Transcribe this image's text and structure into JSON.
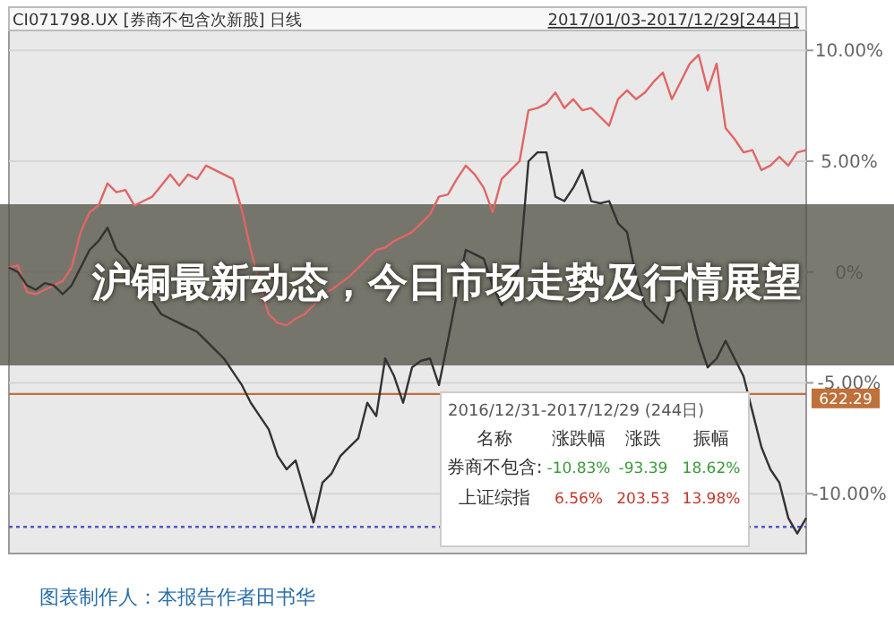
{
  "chart_data": {
    "type": "line",
    "title": "沪铜最新动态，今日市场走势及行情展望",
    "categories": [
      null,
      null,
      null,
      null,
      null,
      null,
      null,
      null,
      null,
      null,
      null,
      null,
      null,
      null,
      null,
      null,
      null,
      null,
      null,
      null,
      null,
      null,
      null,
      null,
      null,
      null,
      null,
      null,
      null,
      null,
      null,
      null,
      null,
      null,
      null,
      null,
      null,
      null,
      null,
      null,
      null,
      null,
      null,
      null,
      null,
      null,
      null,
      null,
      null,
      null,
      null,
      null,
      null,
      null,
      null,
      null,
      null,
      null,
      null,
      null,
      null,
      null,
      null,
      null,
      null,
      null,
      null,
      null,
      null,
      null,
      null,
      null,
      null,
      null,
      null,
      null,
      null,
      null,
      null,
      null,
      null,
      null,
      null,
      null,
      null,
      null,
      null,
      null,
      null,
      null
    ],
    "series": [
      {
        "color": "#e06666",
        "values": [
          0.2,
          0.3,
          -0.9,
          -1.0,
          -0.8,
          -0.6,
          -0.4,
          0.2,
          1.8,
          2.7,
          3.0,
          4.0,
          3.6,
          3.7,
          3.0,
          3.2,
          3.4,
          3.9,
          4.4,
          3.9,
          4.4,
          4.2,
          4.8,
          4.6,
          4.4,
          4.2,
          2.8,
          1.0,
          -0.6,
          -1.9,
          -2.3,
          -2.4,
          -2.1,
          -1.9,
          -1.5,
          -1.0,
          -0.8,
          -0.5,
          -0.2,
          0.2,
          0.6,
          1.0,
          1.1,
          1.4,
          1.6,
          1.8,
          2.2,
          2.6,
          3.4,
          3.5,
          4.2,
          4.8,
          4.4,
          3.8,
          2.7,
          4.2,
          4.6,
          5.0,
          7.3,
          7.4,
          7.6,
          8.1,
          7.4,
          7.8,
          7.3,
          7.4,
          7.0,
          6.6,
          7.8,
          8.2,
          7.8,
          8.1,
          8.6,
          9.0,
          7.8,
          8.6,
          9.4,
          9.8,
          8.2,
          9.4,
          6.5,
          6.0,
          5.4,
          5.5,
          4.6,
          4.8,
          5.2,
          4.8,
          5.4,
          5.5
        ]
      },
      {
        "color": "#333333",
        "values": [
          0.2,
          0.0,
          -0.6,
          -0.8,
          -0.5,
          -0.6,
          -1.0,
          -0.6,
          0.2,
          1.0,
          1.4,
          2.0,
          1.0,
          0.6,
          0.0,
          -0.6,
          -1.3,
          -1.9,
          -2.1,
          -2.3,
          -2.5,
          -2.7,
          -3.1,
          -3.5,
          -3.9,
          -4.5,
          -5.1,
          -5.9,
          -6.5,
          -7.1,
          -8.3,
          -8.9,
          -8.5,
          -9.9,
          -11.3,
          -9.5,
          -9.1,
          -8.3,
          -7.9,
          -7.5,
          -5.9,
          -6.5,
          -3.9,
          -4.7,
          -5.9,
          -4.3,
          -4.0,
          -3.9,
          -5.1,
          -3.1,
          -1.0,
          1.0,
          0.8,
          0.6,
          -0.6,
          -1.5,
          -0.6,
          0.2,
          5.0,
          5.4,
          5.4,
          3.4,
          3.2,
          3.8,
          4.6,
          3.2,
          3.1,
          3.2,
          2.2,
          1.8,
          -0.2,
          -1.5,
          -1.9,
          -2.3,
          -1.0,
          -0.8,
          -1.5,
          -3.1,
          -4.3,
          -3.9,
          -3.1,
          -3.9,
          -4.7,
          -6.3,
          -7.9,
          -8.9,
          -9.5,
          -11.1,
          -11.8,
          -11.1
        ]
      }
    ],
    "ylim": [
      -12.7,
      10.9
    ],
    "yticks": [
      {
        "value": 10,
        "label": "10.00%"
      },
      {
        "value": 5,
        "label": "5.00%"
      },
      {
        "value": 0,
        "label": "0%"
      },
      {
        "value": -5,
        "label": "-5.00%"
      },
      {
        "value": -10,
        "label": "-10.00%"
      }
    ],
    "grid": "y",
    "ref_lines": [
      {
        "axis": "y",
        "value": -5.5,
        "color": "#c0703a",
        "line_style": "solid"
      },
      {
        "axis": "y",
        "value": -11.5,
        "color": "#5555cc",
        "line_style": "dotted"
      }
    ],
    "annotations": [
      "CI071798.UX [券商不包含次新股] 日线",
      "2017/01/03-2017/12/29[244日]",
      "2016/12/31-2017/12/29 (244日)",
      "名称",
      "涨跌幅",
      "涨跌",
      "振幅",
      "券商不包含:",
      "-10.83%",
      "-93.39",
      "18.62%",
      "上证综指",
      "6.56%",
      "203.53",
      "13.98%",
      "图表制作人：本报告作者田书华",
      "622.29"
    ]
  }
}
